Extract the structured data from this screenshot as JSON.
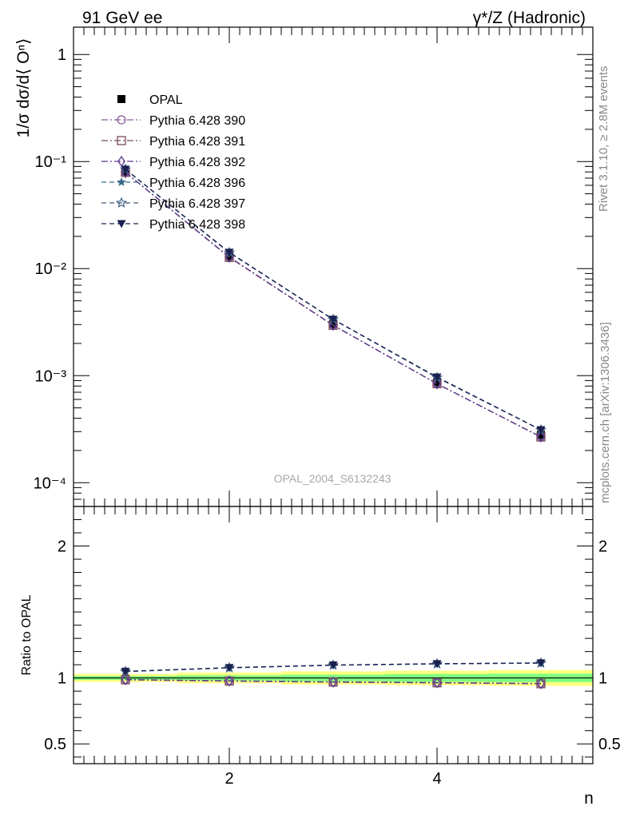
{
  "header": {
    "left": "91 GeV ee",
    "right": "γ*/Z (Hadronic)"
  },
  "side_labels": {
    "rivet": "Rivet 3.1.10, ≥ 2.8M events",
    "mcplots": "mcplots.cern.ch [arXiv:1306.3436]"
  },
  "watermark": "OPAL_2004_S6132243",
  "chart_data": [
    {
      "type": "line",
      "panel": "main",
      "title": "",
      "ylabel": "1/σ dσ/d⟨ Oⁿ⟩",
      "yscale": "log",
      "ylim": [
        6e-05,
        1.8
      ],
      "xlim": [
        0.5,
        5.5
      ],
      "y_ticks": [
        {
          "v": 1,
          "label": "1"
        },
        {
          "v": 0.1,
          "label": "10⁻¹"
        },
        {
          "v": 0.01,
          "label": "10⁻²"
        },
        {
          "v": 0.001,
          "label": "10⁻³"
        },
        {
          "v": 0.0001,
          "label": "10⁻⁴"
        }
      ],
      "x": [
        1,
        2,
        3,
        4,
        5
      ],
      "legend_position": "top-left",
      "series": [
        {
          "name": "OPAL",
          "color": "#000000",
          "marker": "filled-square",
          "dash": "none",
          "values": [
            0.0805,
            0.0131,
            0.00305,
            0.00087,
            0.00028
          ]
        },
        {
          "name": "Pythia 6.428 390",
          "color": "#8a5c9e",
          "marker": "open-circle",
          "dash": "dashdot",
          "values": [
            0.0795,
            0.0128,
            0.00296,
            0.00084,
            0.000268
          ]
        },
        {
          "name": "Pythia 6.428 391",
          "color": "#7a4a5e",
          "marker": "open-square",
          "dash": "dashdot",
          "values": [
            0.0793,
            0.0127,
            0.00295,
            0.00084,
            0.000267
          ]
        },
        {
          "name": "Pythia 6.428 392",
          "color": "#5a3a8e",
          "marker": "open-diamond",
          "dash": "dashdot",
          "values": [
            0.0794,
            0.0128,
            0.00296,
            0.00084,
            0.000268
          ]
        },
        {
          "name": "Pythia 6.428 396",
          "color": "#3a6a8a",
          "marker": "filled-star",
          "dash": "dashed",
          "values": [
            0.0845,
            0.0141,
            0.00335,
            0.00096,
            0.000311
          ]
        },
        {
          "name": "Pythia 6.428 397",
          "color": "#3a5a7a",
          "marker": "open-star",
          "dash": "dashed",
          "values": [
            0.0846,
            0.0141,
            0.00335,
            0.00096,
            0.000311
          ]
        },
        {
          "name": "Pythia 6.428 398",
          "color": "#1a2050",
          "marker": "filled-triangle-down",
          "dash": "dashed",
          "values": [
            0.0847,
            0.0142,
            0.00336,
            0.00097,
            0.000312
          ]
        }
      ]
    },
    {
      "type": "line",
      "panel": "ratio",
      "ylabel": "Ratio to OPAL",
      "xlabel": "n",
      "ylim": [
        0.35,
        2.3
      ],
      "xlim": [
        0.5,
        5.5
      ],
      "y_ticks": [
        {
          "v": 0.5,
          "label": "0.5"
        },
        {
          "v": 1,
          "label": "1"
        },
        {
          "v": 2,
          "label": "2"
        }
      ],
      "x_ticks": [
        {
          "v": 2,
          "label": "2"
        },
        {
          "v": 4,
          "label": "4"
        }
      ],
      "x": [
        1,
        2,
        3,
        4,
        5
      ],
      "bands": {
        "x_edges": [
          0.5,
          1.5,
          2.5,
          3.5,
          4.5,
          5.5
        ],
        "yellow_halfwidth": [
          0.03,
          0.04,
          0.05,
          0.055,
          0.06
        ],
        "green_halfwidth": [
          0.015,
          0.02,
          0.025,
          0.03,
          0.032
        ]
      },
      "series": [
        {
          "name": "Pythia 6.428 390",
          "values": [
            0.988,
            0.978,
            0.97,
            0.965,
            0.958
          ]
        },
        {
          "name": "Pythia 6.428 391",
          "values": [
            0.986,
            0.976,
            0.968,
            0.963,
            0.956
          ]
        },
        {
          "name": "Pythia 6.428 392",
          "values": [
            0.987,
            0.977,
            0.969,
            0.964,
            0.957
          ]
        },
        {
          "name": "Pythia 6.428 396",
          "values": [
            1.048,
            1.076,
            1.096,
            1.106,
            1.112
          ]
        },
        {
          "name": "Pythia 6.428 397",
          "values": [
            1.049,
            1.077,
            1.097,
            1.107,
            1.113
          ]
        },
        {
          "name": "Pythia 6.428 398",
          "values": [
            1.05,
            1.078,
            1.098,
            1.108,
            1.114
          ]
        }
      ]
    }
  ]
}
